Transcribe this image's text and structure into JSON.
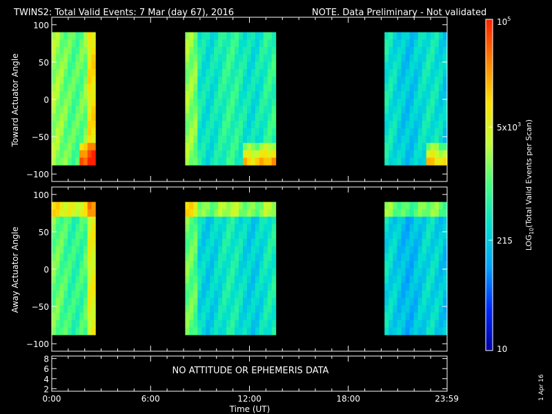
{
  "title": "TWINS2: Total Valid Events:  7 Mar (day  67), 2016",
  "note": "NOTE. Data Preliminary - Not validated",
  "colors": {
    "note": "#ff2020",
    "frame": "#ffffff",
    "background": "#000000"
  },
  "time_ticks": [
    "0:00",
    "6:00",
    "12:00",
    "18:00",
    "23:59"
  ],
  "xlabel": "Time (UT)",
  "date_stamp": "1 Apr 16",
  "colorbar": {
    "label_prefix": "LOG",
    "label_sub": "10",
    "label_suffix": "(Total Valid Events per Scan)",
    "ticks": [
      {
        "base": "10",
        "exp": "5",
        "value": 100000
      },
      {
        "base": "5x10",
        "exp": "3",
        "value": 5000
      },
      {
        "base": "215",
        "exp": "",
        "value": 215
      },
      {
        "base": "10",
        "exp": "",
        "value": 10
      }
    ],
    "min": 10,
    "max": 100000,
    "scale": "log",
    "stops": [
      "#0000a0",
      "#0028ff",
      "#00a0ff",
      "#00e0d0",
      "#40ff80",
      "#c0ff30",
      "#ffe000",
      "#ff8000",
      "#ff2000"
    ]
  },
  "no_data_text": "NO ATTITUDE OR EPHEMERIS DATA",
  "chart_data": [
    {
      "type": "heatmap",
      "name": "toward",
      "ylabel": "Toward Actuator Angle",
      "xlim": [
        0,
        24
      ],
      "ylim": [
        -110,
        110
      ],
      "yticks": [
        100,
        50,
        0,
        -50,
        -100
      ],
      "y_extent": [
        -88,
        90
      ],
      "segments": [
        {
          "t0": 0.0,
          "t1": 2.65,
          "level": 0.55
        },
        {
          "t0": 8.1,
          "t1": 13.6,
          "level": 0.42
        },
        {
          "t0": 20.2,
          "t1": 24.0,
          "level": 0.36
        }
      ]
    },
    {
      "type": "heatmap",
      "name": "away",
      "ylabel": "Away Actuator Angle",
      "xlim": [
        0,
        24
      ],
      "ylim": [
        -110,
        110
      ],
      "yticks": [
        100,
        50,
        0,
        -50,
        -100
      ],
      "y_extent": [
        -88,
        90
      ],
      "segments": [
        {
          "t0": 0.0,
          "t1": 2.65,
          "level": 0.5
        },
        {
          "t0": 8.1,
          "t1": 13.6,
          "level": 0.38
        },
        {
          "t0": 20.2,
          "t1": 24.0,
          "level": 0.33
        }
      ]
    },
    {
      "type": "line",
      "name": "ephemeris",
      "xlim": [
        0,
        24
      ],
      "ylim": [
        1.5,
        8.5
      ],
      "yticks": [
        8,
        6,
        4,
        2
      ]
    }
  ]
}
